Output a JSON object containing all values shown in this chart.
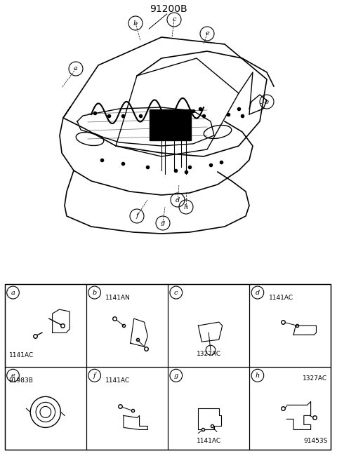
{
  "title": "91200B",
  "bg_color": "#ffffff",
  "border_color": "#000000",
  "text_color": "#000000",
  "diagram_labels": {
    "main_label": "91200B",
    "callouts": [
      "a",
      "b",
      "c",
      "d",
      "e",
      "f",
      "g",
      "h"
    ]
  },
  "parts_grid": {
    "cells": [
      {
        "id": "a",
        "part_code": "1141AC",
        "row": 0,
        "col": 0
      },
      {
        "id": "b",
        "part_code": "1141AN",
        "row": 0,
        "col": 1
      },
      {
        "id": "c",
        "part_code": "1327AC",
        "row": 0,
        "col": 2
      },
      {
        "id": "d",
        "part_code": "1141AC",
        "row": 0,
        "col": 3
      },
      {
        "id": "e",
        "part_code": "91983B",
        "row": 1,
        "col": 0
      },
      {
        "id": "f",
        "part_code": "1141AC",
        "row": 1,
        "col": 1
      },
      {
        "id": "g",
        "part_code": "1141AC",
        "row": 1,
        "col": 2
      },
      {
        "id": "h",
        "part_code": "1327AC\n91453S",
        "row": 1,
        "col": 3
      }
    ]
  },
  "grid_rows": 2,
  "grid_cols": 4
}
